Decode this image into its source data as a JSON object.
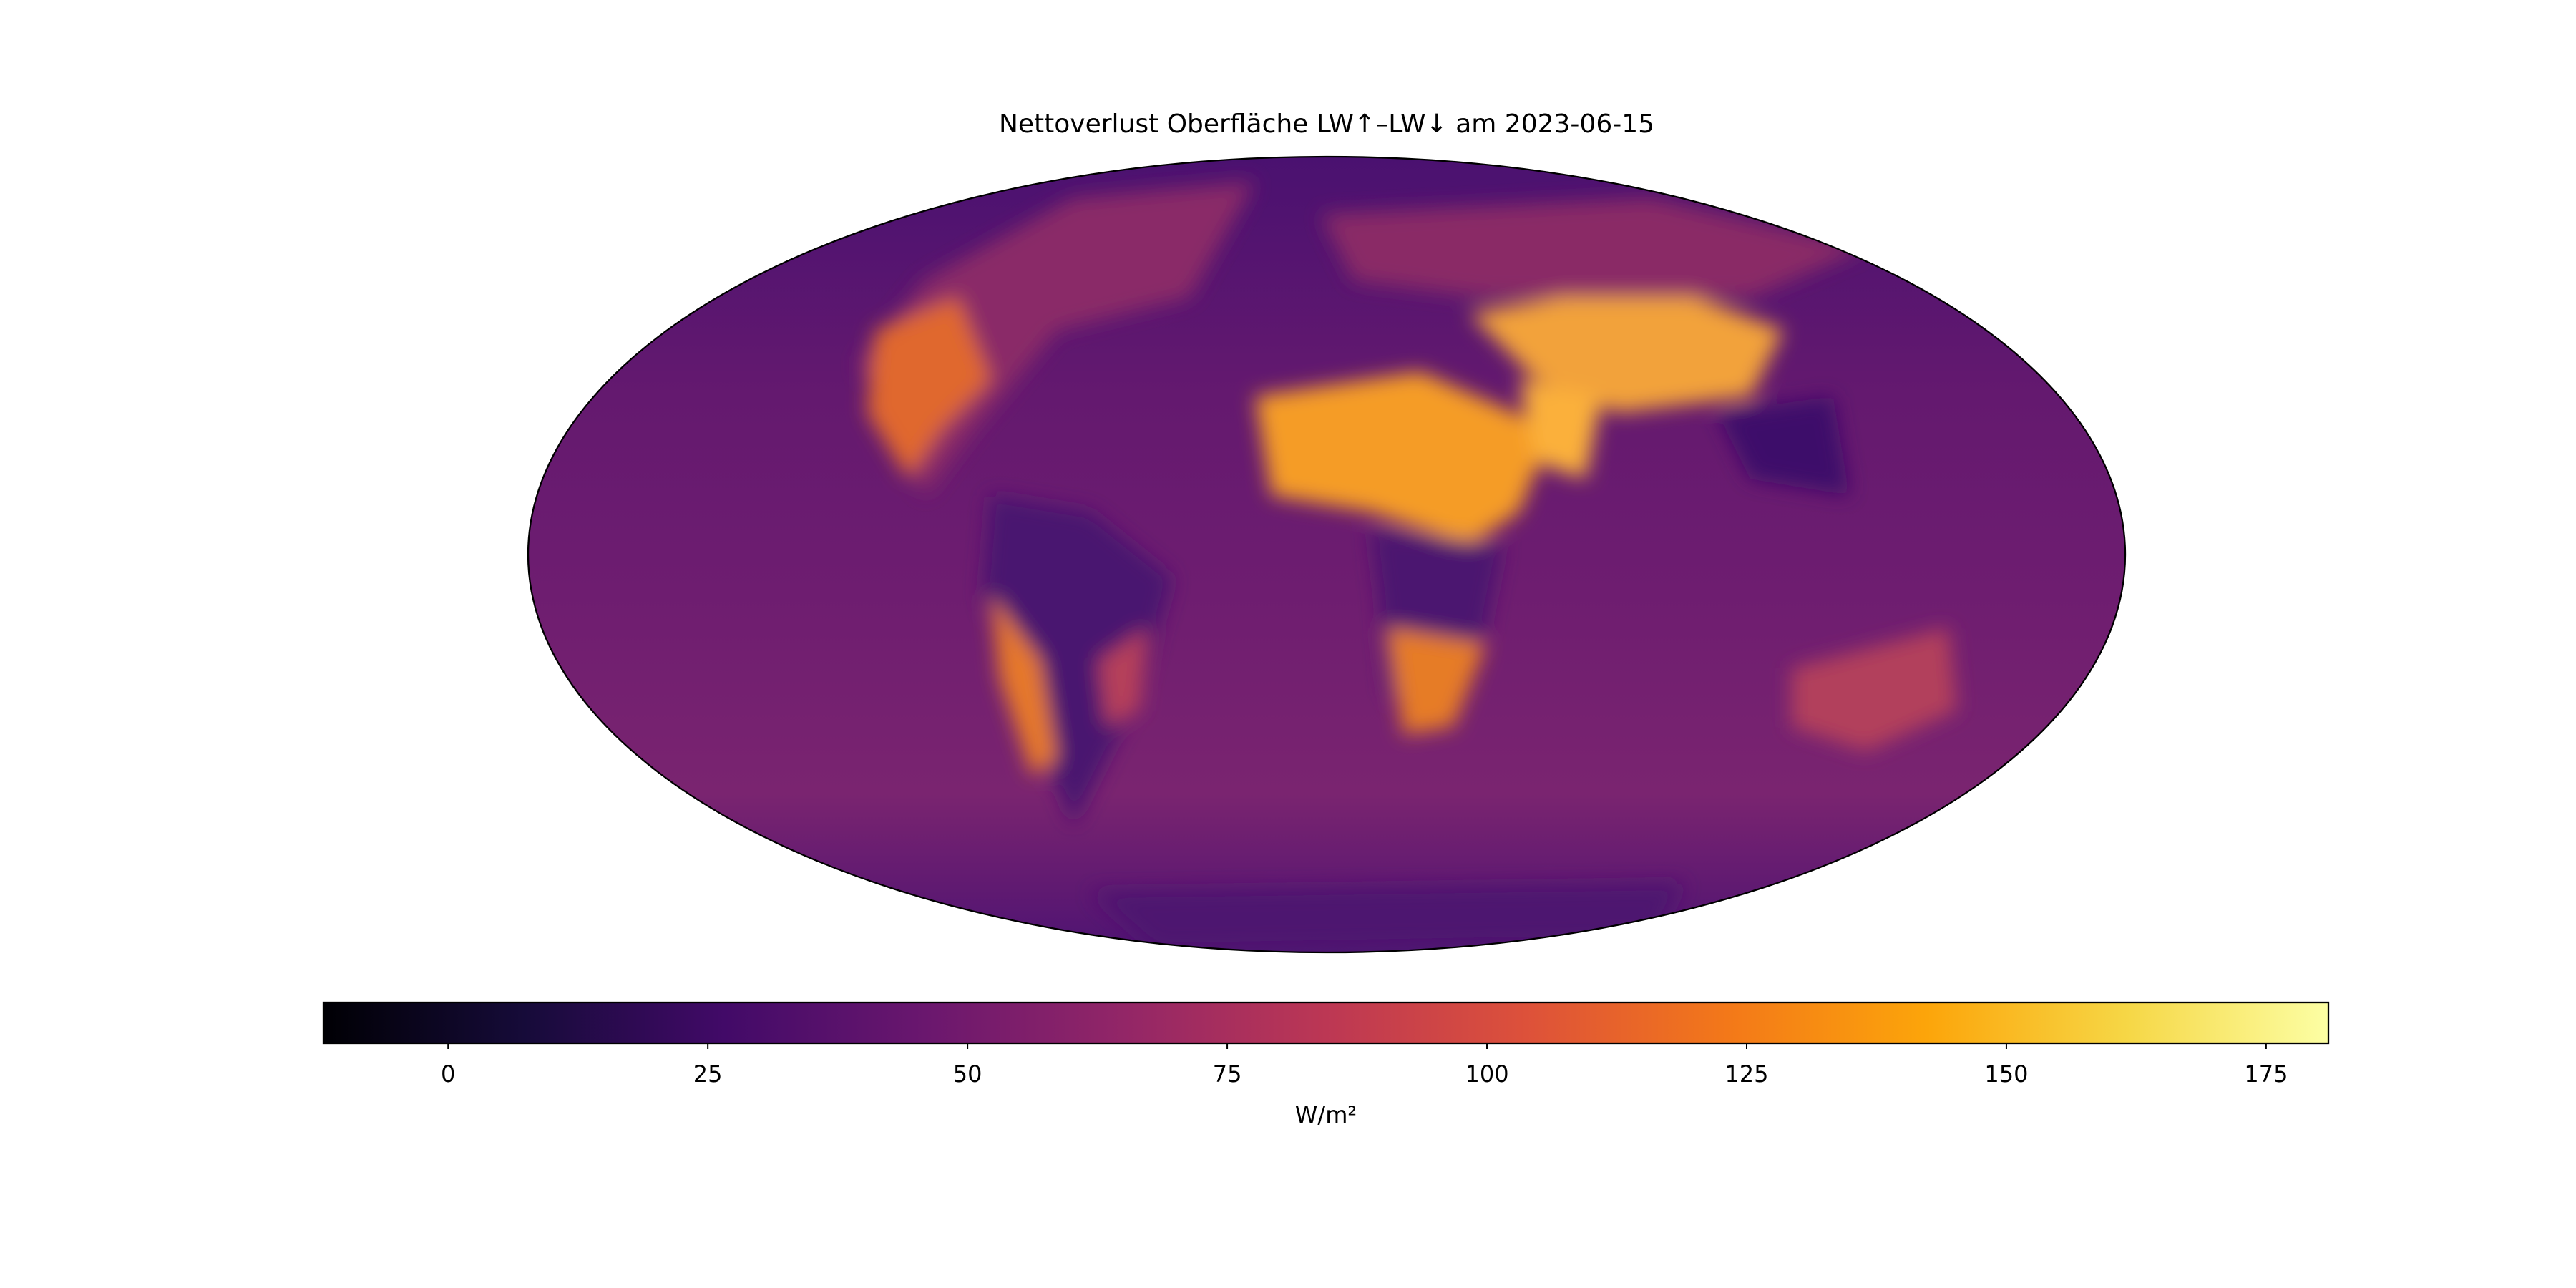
{
  "chart_data": {
    "type": "map",
    "title": "Nettoverlust Oberfläche LW↑–LW↓ am 2023-06-15",
    "colorbar": {
      "label": "W/m²",
      "colormap": "inferno",
      "lim": [
        -12,
        181
      ],
      "ticks": [
        0,
        25,
        50,
        75,
        100,
        125,
        150,
        175
      ]
    }
  }
}
